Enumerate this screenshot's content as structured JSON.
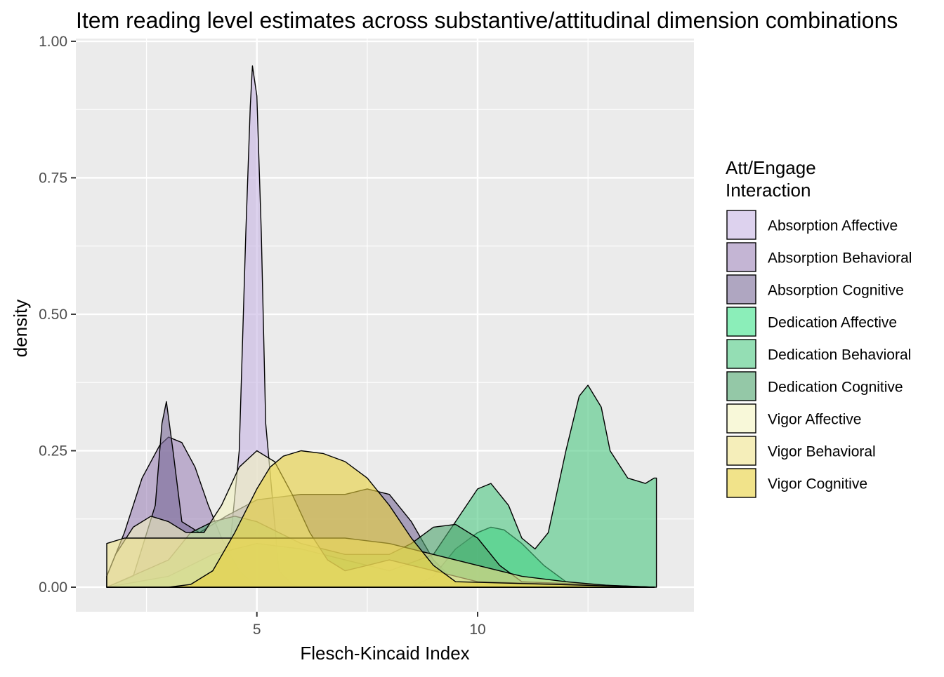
{
  "chart_data": {
    "type": "area",
    "title": "Item reading level estimates across substantive/attitudinal dimension combinations",
    "xlabel": "Flesch-Kincaid Index",
    "ylabel": "density",
    "xlim": [
      0.9,
      14.9
    ],
    "ylim": [
      -0.045,
      1.005
    ],
    "x_ticks": [
      5,
      10
    ],
    "y_ticks": [
      0.0,
      0.25,
      0.5,
      0.75,
      1.0
    ],
    "y_tick_labels": [
      "0.00",
      "0.25",
      "0.50",
      "0.75",
      "1.00"
    ],
    "grid": true,
    "legend": {
      "title_line1": "Att/Engage",
      "title_line2": "Interaction",
      "position": "right"
    },
    "series": [
      {
        "name": "Absorption Affective",
        "color": "#c6b4e2",
        "x": [
          1.6,
          4.3,
          4.6,
          4.75,
          4.85,
          4.9,
          5.0,
          5.1,
          5.2,
          5.5,
          5.8,
          6.0,
          14.0
        ],
        "y": [
          0,
          0.0,
          0.25,
          0.65,
          0.88,
          0.955,
          0.9,
          0.65,
          0.3,
          0.03,
          0.005,
          0,
          0
        ]
      },
      {
        "name": "Absorption Behavioral",
        "color": "#9c84b8",
        "x": [
          1.6,
          2.0,
          2.4,
          2.8,
          3.0,
          3.3,
          3.6,
          3.9,
          4.2,
          4.6,
          5.0,
          14.0
        ],
        "y": [
          0.02,
          0.1,
          0.2,
          0.26,
          0.275,
          0.265,
          0.22,
          0.15,
          0.09,
          0.03,
          0.0,
          0
        ]
      },
      {
        "name": "Absorption Cognitive",
        "color": "#7a6a98",
        "x": [
          1.6,
          2.2,
          2.7,
          2.85,
          2.95,
          3.1,
          3.3,
          3.7,
          4.3,
          5.0,
          6.0,
          7.0,
          7.5,
          8.0,
          8.5,
          9.0,
          9.5,
          14.0
        ],
        "y": [
          0,
          0.02,
          0.15,
          0.3,
          0.34,
          0.25,
          0.12,
          0.1,
          0.13,
          0.16,
          0.17,
          0.17,
          0.18,
          0.17,
          0.12,
          0.05,
          0.01,
          0
        ]
      },
      {
        "name": "Dedication Affective",
        "color": "#3ee38a",
        "x": [
          1.6,
          8.5,
          9.0,
          9.5,
          10.0,
          10.3,
          10.6,
          11.0,
          11.5,
          12.0,
          13.0,
          14.0
        ],
        "y": [
          0,
          0.0,
          0.02,
          0.07,
          0.1,
          0.11,
          0.105,
          0.08,
          0.04,
          0.01,
          0.0,
          0
        ]
      },
      {
        "name": "Dedication Behavioral",
        "color": "#4cc882",
        "x": [
          1.6,
          3.0,
          4.0,
          5.0,
          6.0,
          7.0,
          8.0,
          9.0,
          9.5,
          10.0,
          10.3,
          10.7,
          11.0,
          11.3,
          11.6,
          12.0,
          12.3,
          12.5,
          12.8,
          13.0,
          13.4,
          13.8,
          14.0,
          14.05,
          14.05
        ],
        "y": [
          0,
          0.02,
          0.06,
          0.08,
          0.07,
          0.05,
          0.03,
          0.06,
          0.12,
          0.18,
          0.19,
          0.15,
          0.09,
          0.07,
          0.1,
          0.25,
          0.35,
          0.37,
          0.33,
          0.25,
          0.2,
          0.19,
          0.2,
          0.2,
          0
        ]
      },
      {
        "name": "Dedication Cognitive",
        "color": "#4da36c",
        "x": [
          1.6,
          3.0,
          3.5,
          4.0,
          4.5,
          5.0,
          5.5,
          6.0,
          7.0,
          8.0,
          8.5,
          9.0,
          9.5,
          10.0,
          10.5,
          11.0,
          14.0
        ],
        "y": [
          0,
          0.05,
          0.1,
          0.12,
          0.13,
          0.12,
          0.1,
          0.08,
          0.06,
          0.06,
          0.08,
          0.11,
          0.115,
          0.09,
          0.04,
          0.01,
          0
        ]
      },
      {
        "name": "Vigor Affective",
        "color": "#f3f3c0",
        "x": [
          1.6,
          1.8,
          2.2,
          2.6,
          3.0,
          3.4,
          3.8,
          4.2,
          4.6,
          5.0,
          5.4,
          5.8,
          6.2,
          6.6,
          7.0,
          7.5,
          8.0,
          9.0,
          10.0,
          14.0
        ],
        "y": [
          0.02,
          0.06,
          0.11,
          0.13,
          0.12,
          0.1,
          0.1,
          0.15,
          0.22,
          0.25,
          0.23,
          0.17,
          0.1,
          0.05,
          0.03,
          0.04,
          0.05,
          0.03,
          0.01,
          0
        ]
      },
      {
        "name": "Vigor Behavioral",
        "color": "#efe28c",
        "x": [
          1.6,
          2.0,
          2.4,
          3.0,
          4.0,
          5.0,
          6.0,
          7.0,
          8.0,
          9.0,
          10.0,
          11.0,
          12.0,
          13.0,
          14.0
        ],
        "y": [
          0.08,
          0.09,
          0.09,
          0.09,
          0.09,
          0.09,
          0.09,
          0.09,
          0.08,
          0.06,
          0.04,
          0.02,
          0.01,
          0.003,
          0
        ]
      },
      {
        "name": "Vigor Cognitive",
        "color": "#e8d03c",
        "x": [
          1.6,
          3.0,
          3.5,
          4.0,
          4.5,
          5.0,
          5.3,
          5.6,
          6.0,
          6.5,
          7.0,
          7.5,
          8.0,
          8.5,
          9.0,
          9.5,
          14.0
        ],
        "y": [
          0,
          0.0,
          0.005,
          0.03,
          0.1,
          0.18,
          0.22,
          0.24,
          0.25,
          0.245,
          0.23,
          0.2,
          0.15,
          0.09,
          0.04,
          0.01,
          0
        ]
      }
    ]
  }
}
